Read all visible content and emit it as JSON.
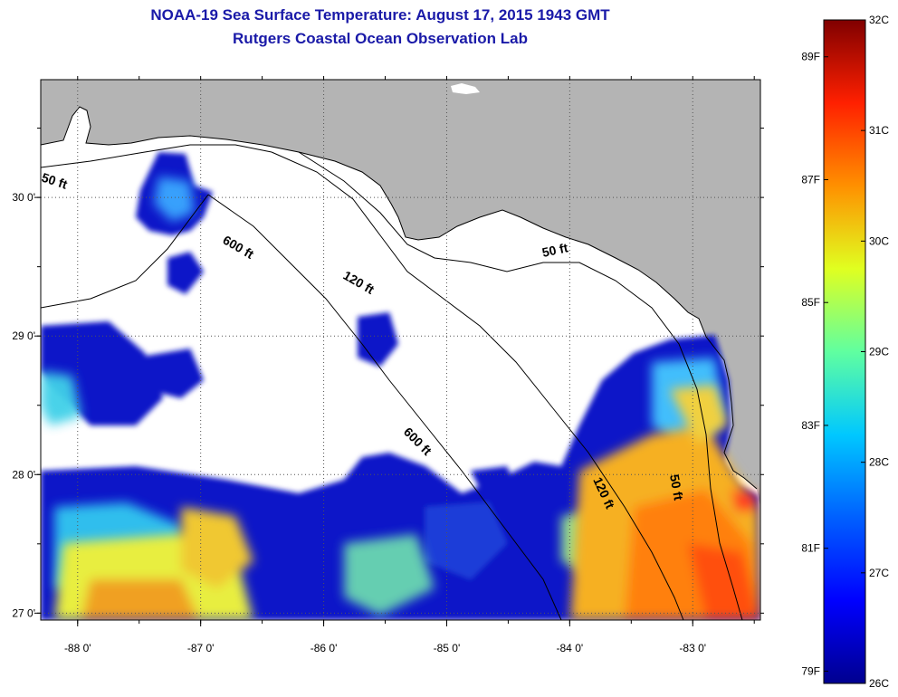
{
  "header": {
    "title": "NOAA-19 Sea Surface Temperature:  August 17, 2015 1943 GMT",
    "subtitle": "Rutgers Coastal Ocean Observation Lab"
  },
  "map": {
    "lon_range": [
      -88.3,
      -82.45
    ],
    "lat_range": [
      26.95,
      30.85
    ],
    "lon_ticks": [
      {
        "value": -88,
        "label": "-88 0'"
      },
      {
        "value": -87,
        "label": "-87 0'"
      },
      {
        "value": -86,
        "label": "-86 0'"
      },
      {
        "value": -85,
        "label": "-85 0'"
      },
      {
        "value": -84,
        "label": "-84 0'"
      },
      {
        "value": -83,
        "label": "-83 0'"
      }
    ],
    "lat_ticks": [
      {
        "value": 30,
        "label": "30 0'"
      },
      {
        "value": 29,
        "label": "29 0'"
      },
      {
        "value": 28,
        "label": "28 0'"
      },
      {
        "value": 27,
        "label": "27 0'"
      }
    ],
    "depth_labels": [
      "50 ft",
      "600 ft",
      "120 ft",
      "50 ft",
      "600 ft",
      "120 ft",
      "50 ft"
    ],
    "colors": {
      "land": "#b4b4b4",
      "ocean_nodata": "#ffffff",
      "grid": "#555555"
    }
  },
  "colorbar": {
    "celsius_labels": [
      "32C",
      "31C",
      "30C",
      "29C",
      "28C",
      "27C",
      "26C"
    ],
    "fahrenheit_labels": [
      "89F",
      "87F",
      "85F",
      "83F",
      "81F",
      "79F"
    ],
    "colormap": [
      "#00008f",
      "#0000ff",
      "#0080ff",
      "#00ffff",
      "#80ff80",
      "#ffff00",
      "#ff8000",
      "#ff0000",
      "#800000"
    ]
  }
}
